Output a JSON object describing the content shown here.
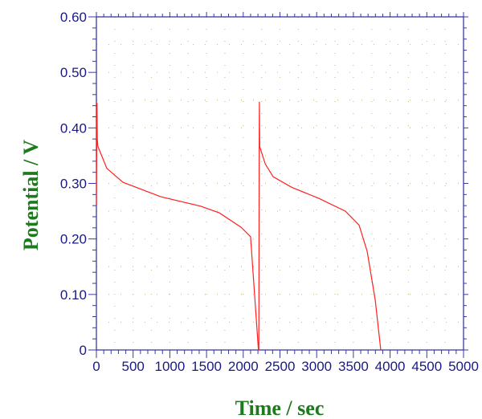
{
  "chart_data": {
    "type": "line",
    "title": "",
    "xlabel": "Time / sec",
    "ylabel": "Potential / V",
    "xlim": [
      0,
      5000
    ],
    "ylim": [
      0,
      0.6
    ],
    "xticks": [
      "0",
      "500",
      "1000",
      "1500",
      "2000",
      "2500",
      "3000",
      "3500",
      "4000",
      "4500",
      "5000"
    ],
    "yticks": [
      "0",
      "0.10",
      "0.20",
      "0.30",
      "0.40",
      "0.50",
      "0.60"
    ],
    "grid": true,
    "colors": {
      "axis": "#3a3aa0",
      "line": "#ff2020",
      "label": "#1e7a1e",
      "grid": "#c8c090"
    },
    "series": [
      {
        "name": "potential",
        "x": [
          0,
          8,
          12,
          20,
          142,
          361,
          875,
          1422,
          1674,
          1970,
          2100,
          2207,
          2212,
          2218,
          2220,
          2224,
          2300,
          2407,
          2659,
          3031,
          3392,
          3578,
          3687,
          3796,
          3873
        ],
        "y": [
          0.26,
          0.445,
          0.38,
          0.367,
          0.327,
          0.302,
          0.276,
          0.259,
          0.247,
          0.221,
          0.204,
          0.0,
          0.0,
          0.375,
          0.447,
          0.366,
          0.335,
          0.312,
          0.293,
          0.273,
          0.25,
          0.225,
          0.178,
          0.091,
          0.0
        ]
      }
    ]
  }
}
